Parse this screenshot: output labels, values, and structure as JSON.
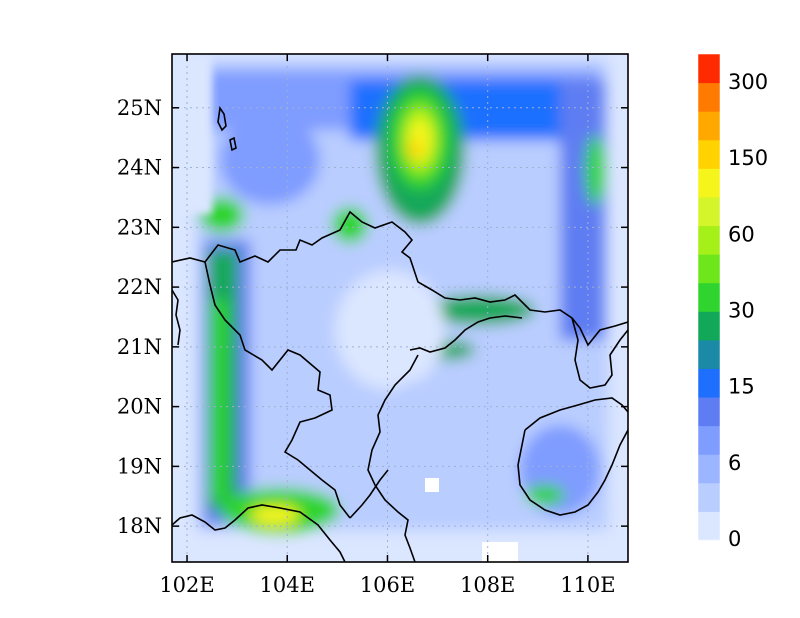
{
  "map": {
    "lat_ticks": [
      "25N",
      "24N",
      "23N",
      "22N",
      "21N",
      "20N",
      "19N",
      "18N"
    ],
    "lon_ticks": [
      "102E",
      "104E",
      "106E",
      "108E",
      "110E"
    ],
    "extent": {
      "lon_min": 101.7,
      "lon_max": 110.8,
      "lat_min": 17.4,
      "lat_max": 25.9
    },
    "grid": "dotted"
  },
  "colorbar": {
    "labels": [
      "300",
      "150",
      "60",
      "30",
      "15",
      "6",
      "0"
    ],
    "colors": [
      "#dbe6ff",
      "#b9cdff",
      "#9cb5ff",
      "#7f9cff",
      "#5f7df2",
      "#1f6fff",
      "#1a8aa6",
      "#12a85a",
      "#2fd42f",
      "#6ee61c",
      "#a6f01a",
      "#d4f52a",
      "#f6f51b",
      "#ffd200",
      "#ffa800",
      "#ff7a00",
      "#ff2a00"
    ]
  }
}
